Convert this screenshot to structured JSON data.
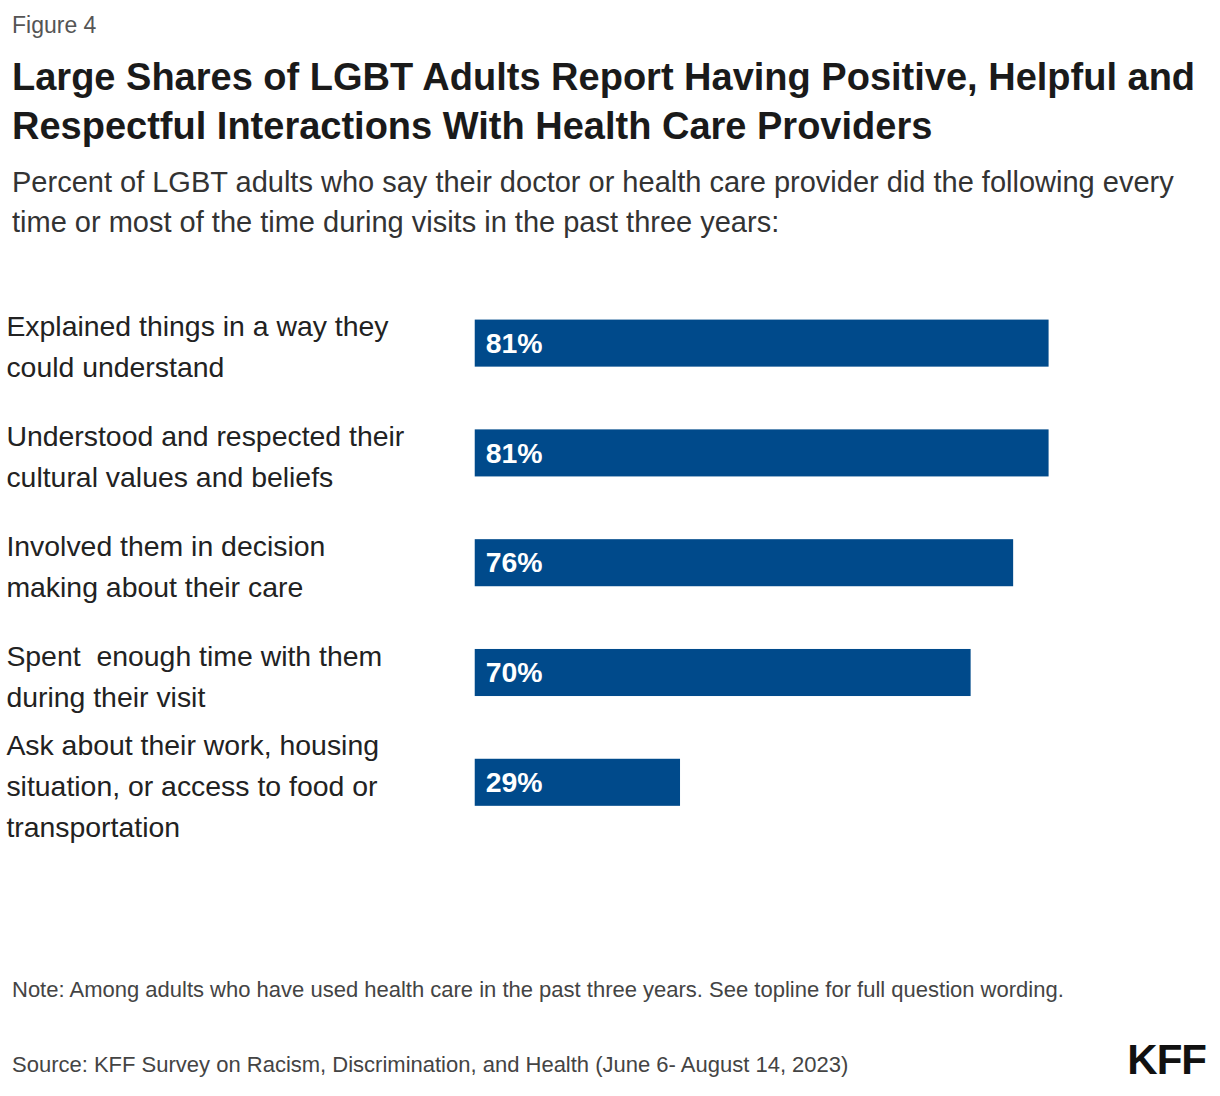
{
  "chart_data": {
    "type": "bar",
    "figure": "Figure 4",
    "title": "Large Shares of LGBT Adults Report Having Positive, Helpful and Respectful Interactions With Health Care Providers",
    "subtitle": "Percent of LGBT adults who say their doctor or health care provider did the following every time or most of the time during visits in the past three years:",
    "categories": [
      "Explained things in a way they could understand",
      "Understood and respected their cultural values and beliefs",
      "Involved them in decision making about their care",
      "Spent  enough time with them during their visit",
      "Ask about their work, housing situation, or access to food or transportation"
    ],
    "values": [
      81,
      81,
      76,
      70,
      29
    ],
    "value_labels": [
      "81%",
      "81%",
      "76%",
      "70%",
      "29%"
    ],
    "color": "#004a8b",
    "orientation": "horizontal",
    "data_labels": true,
    "tick_labels": "y",
    "xlim": [
      0,
      100
    ],
    "note": "Note: Among adults who have used health care in the past three years. See topline for full question wording.",
    "source": "Source: KFF Survey on Racism, Discrimination, and Health (June 6- August 14, 2023)",
    "logo": "KFF"
  }
}
